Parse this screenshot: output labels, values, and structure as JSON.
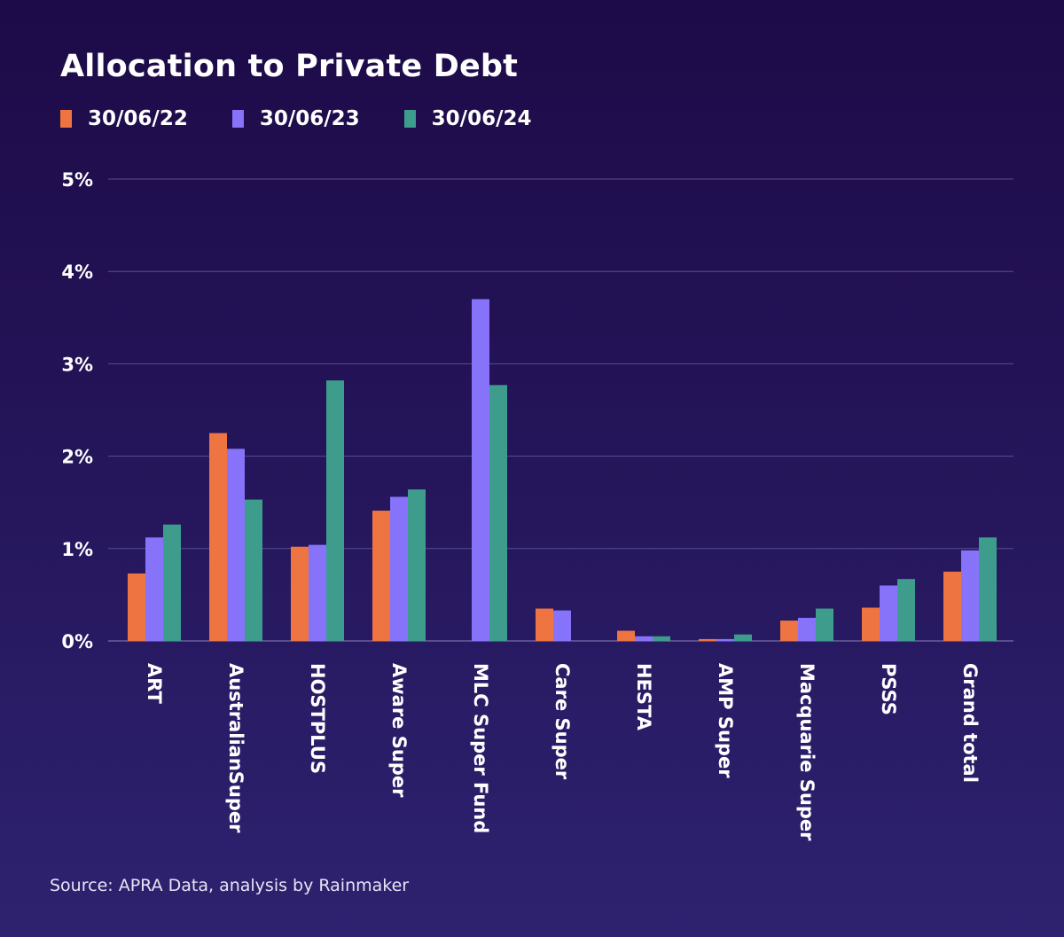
{
  "chart_data": {
    "type": "bar",
    "title": "Allocation to Private Debt",
    "xlabel": "",
    "ylabel": "",
    "ylim": [
      0,
      5
    ],
    "yticks": [
      0,
      1,
      2,
      3,
      4,
      5
    ],
    "ytick_labels": [
      "0%",
      "1%",
      "2%",
      "3%",
      "4%",
      "5%"
    ],
    "grid": true,
    "legend_position": "top-left",
    "categories": [
      "ART",
      "AustralianSuper",
      "HOSTPLUS",
      "Aware Super",
      "MLC Super Fund",
      "Care Super",
      "HESTA",
      "AMP Super",
      "Macquarie Super",
      "PSSS",
      "Grand total"
    ],
    "series": [
      {
        "name": "30/06/22",
        "color": "#ee7541",
        "values": [
          0.73,
          2.25,
          1.02,
          1.41,
          0,
          0.35,
          0.11,
          0.02,
          0.22,
          0.36,
          0.75
        ]
      },
      {
        "name": "30/06/23",
        "color": "#8673fa",
        "values": [
          1.12,
          2.08,
          1.04,
          1.56,
          3.7,
          0.33,
          0.05,
          0.02,
          0.25,
          0.6,
          0.98
        ]
      },
      {
        "name": "30/06/24",
        "color": "#3e9c8c",
        "values": [
          1.26,
          1.53,
          2.82,
          1.64,
          2.77,
          0,
          0.05,
          0.07,
          0.35,
          0.67,
          1.12
        ]
      }
    ]
  },
  "source": "Source: APRA Data, analysis by Rainmaker",
  "colors": {
    "grid": "#5a4d8e",
    "axis": "#8a80b8"
  }
}
